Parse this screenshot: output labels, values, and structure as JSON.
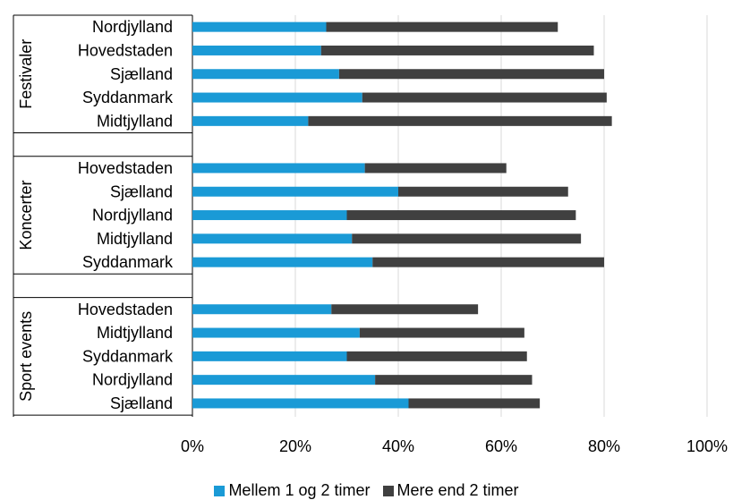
{
  "chart_data": {
    "type": "bar",
    "orientation": "horizontal",
    "stacked": true,
    "xlim": [
      0,
      100
    ],
    "x_ticks": [
      "0%",
      "20%",
      "40%",
      "60%",
      "80%",
      "100%"
    ],
    "grid": "vertical",
    "legend_position": "bottom",
    "series_colors": [
      "#1a9ad6",
      "#404040"
    ],
    "series": [
      {
        "name": "Mellem 1 og 2 timer"
      },
      {
        "name": "Mere end 2 timer"
      }
    ],
    "groups": [
      {
        "name": "Festivaler",
        "categories": [
          "Nordjylland",
          "Hovedstaden",
          "Sjælland",
          "Syddanmark",
          "Midtjylland"
        ],
        "values": [
          [
            26,
            45
          ],
          [
            25,
            53
          ],
          [
            28.5,
            51.5
          ],
          [
            33,
            47.5
          ],
          [
            22.5,
            59
          ]
        ]
      },
      {
        "name": "Koncerter",
        "categories": [
          "Hovedstaden",
          "Sjælland",
          "Nordjylland",
          "Midtjylland",
          "Syddanmark"
        ],
        "values": [
          [
            33.5,
            27.5
          ],
          [
            40,
            33
          ],
          [
            30,
            44.5
          ],
          [
            31,
            44.5
          ],
          [
            35,
            45
          ]
        ]
      },
      {
        "name": "Sport events",
        "categories": [
          "Hovedstaden",
          "Midtjylland",
          "Syddanmark",
          "Nordjylland",
          "Sjælland"
        ],
        "values": [
          [
            27,
            28.5
          ],
          [
            32.5,
            32
          ],
          [
            30,
            35
          ],
          [
            35.5,
            30.5
          ],
          [
            42,
            25.5
          ]
        ]
      }
    ]
  }
}
